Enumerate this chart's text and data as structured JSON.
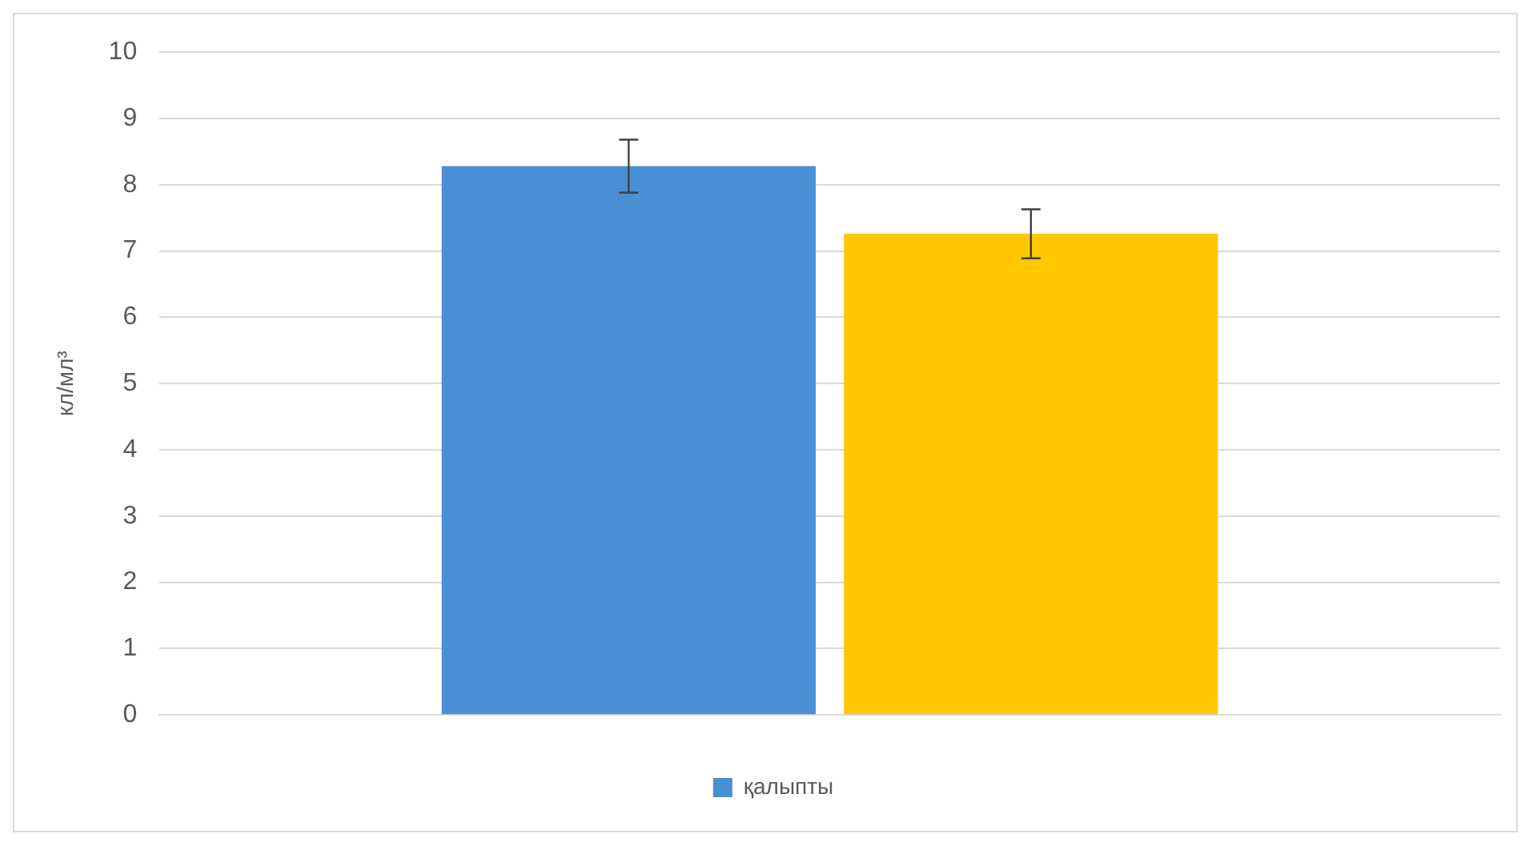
{
  "chart_data": {
    "type": "bar",
    "ylabel": "кл/мл³",
    "categories": [
      null
    ],
    "series": [
      {
        "name": "қалыпты",
        "color": "#4a8fd4",
        "values": [
          8.28
        ],
        "errors": [
          0.4
        ]
      },
      {
        "color": "#ffc800",
        "values": [
          7.26
        ],
        "errors": [
          0.37
        ]
      }
    ],
    "ylim": [
      0,
      10
    ],
    "yticks": [
      0,
      1,
      2,
      3,
      4,
      5,
      6,
      7,
      8,
      9,
      10
    ],
    "grid": "y",
    "legend": "bottom"
  }
}
